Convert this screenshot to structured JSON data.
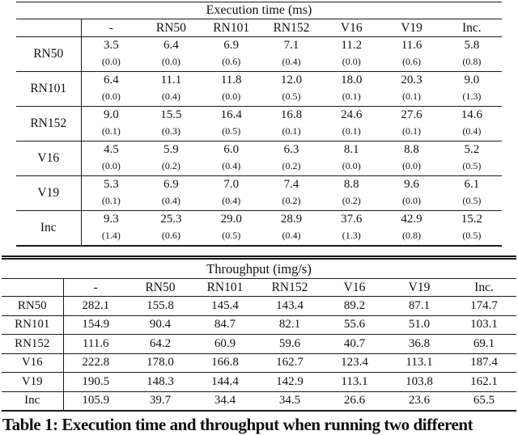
{
  "colors": {
    "background": "#ffffff",
    "text": "#121212",
    "rule": "#1a1a1a"
  },
  "table1": {
    "title": "Execution time (ms)",
    "columns": [
      "-",
      "RN50",
      "RN101",
      "RN152",
      "V16",
      "V19",
      "Inc."
    ],
    "rows": [
      {
        "label": "RN50",
        "values": [
          "3.5",
          "6.4",
          "6.9",
          "7.1",
          "11.2",
          "11.6",
          "5.8"
        ],
        "std": [
          "(0.0)",
          "(0.0)",
          "(0.6)",
          "(0.4)",
          "(0.0)",
          "(0.6)",
          "(0.8)"
        ]
      },
      {
        "label": "RN101",
        "values": [
          "6.4",
          "11.1",
          "11.8",
          "12.0",
          "18.0",
          "20.3",
          "9.0"
        ],
        "std": [
          "(0.0)",
          "(0.4)",
          "(0.0)",
          "(0.5)",
          "(0.1)",
          "(0.1)",
          "(1.3)"
        ]
      },
      {
        "label": "RN152",
        "values": [
          "9.0",
          "15.5",
          "16.4",
          "16.8",
          "24.6",
          "27.6",
          "14.6"
        ],
        "std": [
          "(0.1)",
          "(0.3)",
          "(0.5)",
          "(0.1)",
          "(0.1)",
          "(0.1)",
          "(0.4)"
        ]
      },
      {
        "label": "V16",
        "values": [
          "4.5",
          "5.9",
          "6.0",
          "6.3",
          "8.1",
          "8.8",
          "5.2"
        ],
        "std": [
          "(0.0)",
          "(0.2)",
          "(0.4)",
          "(0.2)",
          "(0.0)",
          "(0.0)",
          "(0.5)"
        ]
      },
      {
        "label": "V19",
        "values": [
          "5.3",
          "6.9",
          "7.0",
          "7.4",
          "8.8",
          "9.6",
          "6.1"
        ],
        "std": [
          "(0.1)",
          "(0.4)",
          "(0.4)",
          "(0.2)",
          "(0.2)",
          "(0.0)",
          "(0.5)"
        ]
      },
      {
        "label": "Inc",
        "values": [
          "9.3",
          "25.3",
          "29.0",
          "28.9",
          "37.6",
          "42.9",
          "15.2"
        ],
        "std": [
          "(1.4)",
          "(0.6)",
          "(0.5)",
          "(0.4)",
          "(1.3)",
          "(0.8)",
          "(0.5)"
        ]
      }
    ]
  },
  "table2": {
    "title": "Throughput (img/s)",
    "columns": [
      "-",
      "RN50",
      "RN101",
      "RN152",
      "V16",
      "V19",
      "Inc."
    ],
    "rows": [
      {
        "label": "RN50",
        "values": [
          "282.1",
          "155.8",
          "145.4",
          "143.4",
          "89.2",
          "87.1",
          "174.7"
        ]
      },
      {
        "label": "RN101",
        "values": [
          "154.9",
          "90.4",
          "84.7",
          "82.1",
          "55.6",
          "51.0",
          "103.1"
        ]
      },
      {
        "label": "RN152",
        "values": [
          "111.6",
          "64.2",
          "60.9",
          "59.6",
          "40.7",
          "36.8",
          "69.1"
        ]
      },
      {
        "label": "V16",
        "values": [
          "222.8",
          "178.0",
          "166.8",
          "162.7",
          "123.4",
          "113.1",
          "187.4"
        ]
      },
      {
        "label": "V19",
        "values": [
          "190.5",
          "148.3",
          "144.4",
          "142.9",
          "113.1",
          "103.8",
          "162.1"
        ]
      },
      {
        "label": "Inc",
        "values": [
          "105.9",
          "39.7",
          "34.4",
          "34.5",
          "26.6",
          "23.6",
          "65.5"
        ]
      }
    ]
  },
  "caption": "Table 1: Execution time and throughput when running two different"
}
